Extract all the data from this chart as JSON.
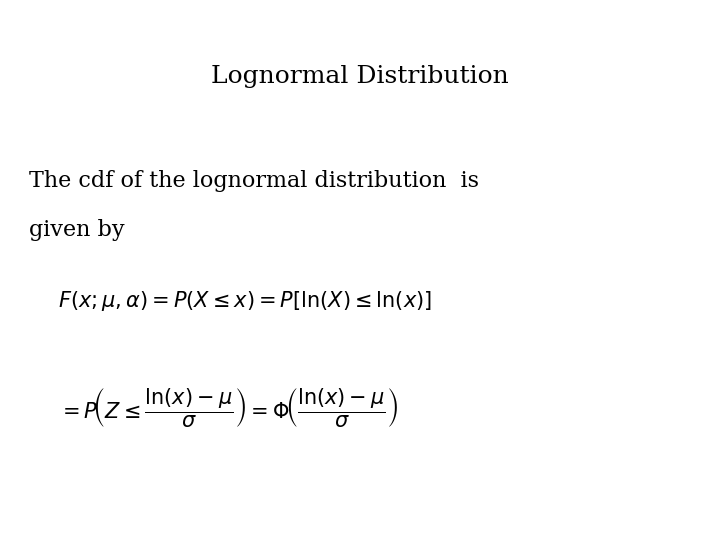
{
  "title": "Lognormal Distribution",
  "body_line1": "The cdf of the lognormal distribution  is",
  "body_line2": "given by",
  "formula1": "$F(x;\\mu,\\alpha) = P(X \\leq x) = P[\\ln(X) \\leq \\ln(x)]$",
  "formula2": "$= P\\!\\left(Z \\leq \\dfrac{\\ln(x)-\\mu}{\\sigma}\\right) = \\Phi\\!\\left(\\dfrac{\\ln(x)-\\mu}{\\sigma}\\right)$",
  "bg_color": "#ffffff",
  "text_color": "#000000",
  "title_fontsize": 18,
  "body_fontsize": 16,
  "formula1_fontsize": 15,
  "formula2_fontsize": 15
}
